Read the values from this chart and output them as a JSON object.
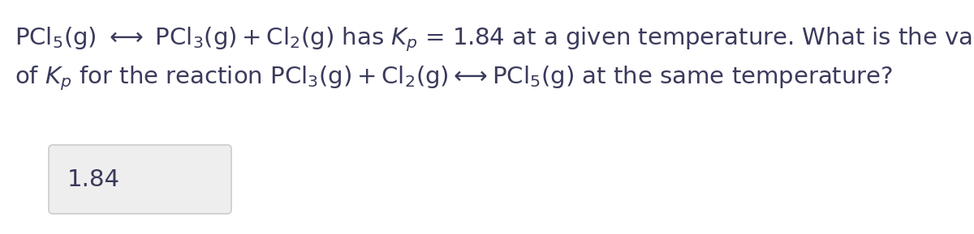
{
  "bg_color": "#ffffff",
  "text_color": "#3a3a5c",
  "answer_color": "#3a3a5c",
  "answer_box_facecolor": "#eeeeee",
  "answer_box_edgecolor": "#cccccc",
  "font_size": 21,
  "answer_font_size": 21,
  "answer": "1.84"
}
